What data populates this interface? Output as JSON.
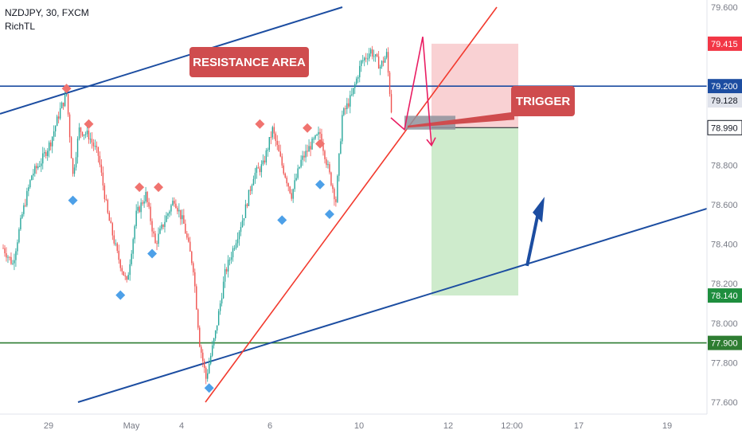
{
  "header": {
    "symbol_line": "NZDJPY, 30, FXCM",
    "indicator": "RichTL"
  },
  "annotations": {
    "resistance_label": "RESISTANCE AREA",
    "trigger_label": "TRIGGER"
  },
  "colors": {
    "up_candle": "#26a69a",
    "down_candle": "#ef5350",
    "channel_line": "#1c4da1",
    "trend_line": "#f23a2e",
    "support_line": "#2e7d32",
    "resistance_line": "#1c4da1",
    "stop_zone": "#f8c9cb",
    "target_zone": "#c9e9c6",
    "label_bg": "#cf4c4e",
    "swing_high": "#f0736f",
    "swing_low": "#4da0e8",
    "path_arrow": "#e91e63",
    "up_arrow": "#1c4da1"
  },
  "chart_data": {
    "type": "candlestick",
    "title": "NZDJPY, 30, FXCM",
    "ylim": [
      77.52,
      79.62
    ],
    "y_ticks": [
      "79.600",
      "79.400",
      "79.200",
      "79.000",
      "78.800",
      "78.600",
      "78.400",
      "78.200",
      "78.000",
      "77.800",
      "77.600"
    ],
    "x_ticks": [
      "29",
      "May",
      "4",
      "6",
      "10",
      "12",
      "12:00",
      "17",
      "19"
    ],
    "price_labels": [
      {
        "text": "79.415",
        "value": 79.415,
        "color": "#f23645",
        "text_color": "#ffffff"
      },
      {
        "text": "79.200",
        "value": 79.2,
        "color": "#1c4da1",
        "text_color": "#ffffff"
      },
      {
        "text": "79.128",
        "value": 79.128,
        "color": "#e0e3eb",
        "text_color": "#131722"
      },
      {
        "text": "78.990",
        "value": 78.99,
        "color": "#ffffff",
        "text_color": "#131722"
      },
      {
        "text": "78.140",
        "value": 78.14,
        "color": "#1e8e3e",
        "text_color": "#ffffff"
      },
      {
        "text": "77.900",
        "value": 77.9,
        "color": "#2e7d32",
        "text_color": "#ffffff"
      }
    ],
    "horizontal_lines": [
      {
        "name": "resistance",
        "value": 79.2
      },
      {
        "name": "support",
        "value": 77.9
      }
    ],
    "trade_setup": {
      "stop_top": 79.415,
      "entry": 78.99,
      "target": 78.14
    },
    "price_path": [
      {
        "i": 0,
        "v": 78.38
      },
      {
        "i": 6,
        "v": 78.3
      },
      {
        "i": 12,
        "v": 78.55
      },
      {
        "i": 18,
        "v": 78.75
      },
      {
        "i": 24,
        "v": 78.82
      },
      {
        "i": 30,
        "v": 78.92
      },
      {
        "i": 36,
        "v": 79.08
      },
      {
        "i": 40,
        "v": 79.16
      },
      {
        "i": 44,
        "v": 78.75
      },
      {
        "i": 48,
        "v": 78.98
      },
      {
        "i": 54,
        "v": 78.95
      },
      {
        "i": 60,
        "v": 78.85
      },
      {
        "i": 66,
        "v": 78.55
      },
      {
        "i": 72,
        "v": 78.35
      },
      {
        "i": 78,
        "v": 78.2
      },
      {
        "i": 84,
        "v": 78.55
      },
      {
        "i": 90,
        "v": 78.65
      },
      {
        "i": 96,
        "v": 78.4
      },
      {
        "i": 102,
        "v": 78.52
      },
      {
        "i": 108,
        "v": 78.63
      },
      {
        "i": 114,
        "v": 78.5
      },
      {
        "i": 120,
        "v": 78.28
      },
      {
        "i": 124,
        "v": 77.9
      },
      {
        "i": 128,
        "v": 77.72
      },
      {
        "i": 134,
        "v": 77.95
      },
      {
        "i": 140,
        "v": 78.25
      },
      {
        "i": 146,
        "v": 78.4
      },
      {
        "i": 152,
        "v": 78.55
      },
      {
        "i": 158,
        "v": 78.75
      },
      {
        "i": 164,
        "v": 78.8
      },
      {
        "i": 170,
        "v": 78.98
      },
      {
        "i": 176,
        "v": 78.8
      },
      {
        "i": 182,
        "v": 78.65
      },
      {
        "i": 188,
        "v": 78.82
      },
      {
        "i": 194,
        "v": 78.9
      },
      {
        "i": 200,
        "v": 78.96
      },
      {
        "i": 206,
        "v": 78.75
      },
      {
        "i": 210,
        "v": 78.62
      },
      {
        "i": 214,
        "v": 79.05
      },
      {
        "i": 220,
        "v": 79.15
      },
      {
        "i": 226,
        "v": 79.32
      },
      {
        "i": 232,
        "v": 79.38
      },
      {
        "i": 238,
        "v": 79.3
      },
      {
        "i": 242,
        "v": 79.36
      },
      {
        "i": 245,
        "v": 79.08
      }
    ],
    "swing_highs": [
      {
        "i": 40,
        "v": 79.16
      },
      {
        "i": 54,
        "v": 78.98
      },
      {
        "i": 86,
        "v": 78.66
      },
      {
        "i": 98,
        "v": 78.66
      },
      {
        "i": 162,
        "v": 78.98
      },
      {
        "i": 192,
        "v": 78.96
      },
      {
        "i": 200,
        "v": 78.88
      }
    ],
    "swing_lows": [
      {
        "i": 44,
        "v": 78.65
      },
      {
        "i": 74,
        "v": 78.17
      },
      {
        "i": 94,
        "v": 78.38
      },
      {
        "i": 130,
        "v": 77.7
      },
      {
        "i": 176,
        "v": 78.55
      },
      {
        "i": 200,
        "v": 78.73
      },
      {
        "i": 206,
        "v": 78.58
      }
    ]
  }
}
